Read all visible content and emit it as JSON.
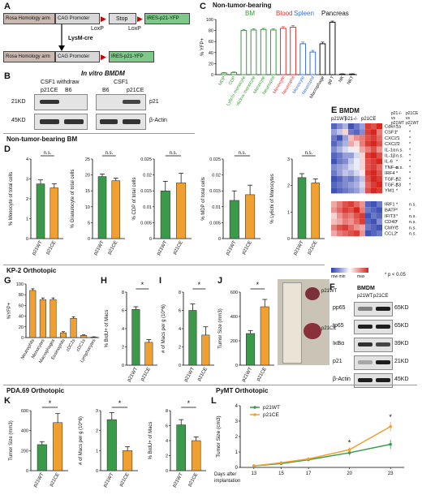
{
  "panels": {
    "A": {
      "label": "A",
      "construct1": {
        "rosa": "Rosa Homology arm",
        "cag": "CAG Promoter",
        "stop": "Stop",
        "ires": "IRES-p21-YFP"
      },
      "loxp_left": "LoxP",
      "loxp_right": "LoxP",
      "cre": "LysM-cre",
      "construct2": {
        "rosa": "Rosa Homology arm",
        "cag": "CAG Promoter",
        "ires": "IRES-p21-YFP"
      }
    },
    "B": {
      "label": "B",
      "title": "In vitro BMDM",
      "cond1": "CSF1 withdraw",
      "cond2": "CSF1",
      "lanes1": [
        "p21CE",
        "B6"
      ],
      "lanes2": [
        "B6",
        "p21CE"
      ],
      "kd_top": "21KD",
      "kd_bottom": "45KD",
      "prot_top": "p21",
      "prot_bottom": "β-Actin"
    },
    "C": {
      "label": "C",
      "title": "Non-tumor-bearing",
      "groups": [
        "BM",
        "Blood",
        "Spleen",
        "Pancreas"
      ],
      "group_colors": [
        "#3a9a3a",
        "#d33",
        "#3a6fd8",
        "#111111"
      ],
      "ylabel": "% YFP+",
      "yticks": [
        "0",
        "20",
        "40",
        "60",
        "80",
        "100"
      ]
    },
    "D": {
      "label": "D",
      "header": "Non-tumor-bearing BM",
      "ns": "n.s.",
      "xlabels": [
        "p21WT",
        "p21CE"
      ]
    },
    "E": {
      "label": "E",
      "title": "BMDM",
      "cols": [
        "p21WT",
        "p21-/-",
        "p21CE"
      ],
      "cmp1": "p21-/- vs p21WT",
      "cmp2": "p21CE vs p21WT",
      "genes_top": [
        "Cdkn1a",
        "CSF1",
        "CXCL1",
        "CXCL2",
        "IL-1α",
        "IL-1β",
        "IL-6",
        "TNF-α",
        "IRF4",
        "TGF-β2",
        "TGF-β3",
        "YM1"
      ],
      "sig_top_1": [
        "*",
        "*",
        "*",
        "*",
        "n.s.",
        "n.s.",
        "*",
        "n.s.",
        "*",
        "*",
        "*",
        "*"
      ],
      "sig_top_2": [
        "*",
        "*",
        "*",
        "*",
        "*",
        "*",
        "*",
        "*",
        "*",
        "*",
        "*",
        "*"
      ],
      "genes_bottom": [
        "IRF1",
        "BATF",
        "IFIT3",
        "CD40",
        "CMYC",
        "CCL2"
      ],
      "sig_bot_1": [
        "*",
        "*",
        "*",
        "*",
        "*",
        "*"
      ],
      "sig_bot_2": [
        "n.s.",
        "*",
        "n.s.",
        "n.s.",
        "n.s.",
        "n.s."
      ],
      "legend_min": "row min",
      "legend_max": "max",
      "pval": "* p < 0.05"
    },
    "F": {
      "label": "F",
      "title": "BMDM",
      "lanes": [
        "p21WT",
        "p21CE"
      ],
      "proteins": [
        "pp65",
        "tp65",
        "IκBα",
        "p21",
        "β-Actin"
      ],
      "kds": [
        "65KD",
        "65KD",
        "39KD",
        "21KD",
        "45KD"
      ]
    },
    "G": {
      "label": "G",
      "header": "KP-2 Orthotopic",
      "ylabel": "%YFP+"
    },
    "H": {
      "label": "H"
    },
    "I": {
      "label": "I"
    },
    "J": {
      "label": "J",
      "photo_wt": "p21WT",
      "photo_ce": "p21CE"
    },
    "K": {
      "label": "K",
      "header": "PDA.69 Orthotopic"
    },
    "L": {
      "label": "L",
      "header": "PyMT Orthotopic"
    }
  },
  "colors": {
    "wt": "#3b9a4a",
    "ce": "#f0a030",
    "heat_low": "#2c3fae",
    "heat_high": "#d7261e"
  },
  "chart_data": [
    {
      "id": "C",
      "type": "bar",
      "title": "Non-tumor-bearing",
      "ylabel": "% YFP+",
      "ylim": [
        0,
        100
      ],
      "categories": [
        "MDP",
        "CDP",
        "Ly6chi monocyte",
        "Ly6clow monocyte",
        "Monocyte",
        "Neutrophil",
        "Monocyte",
        "Neutrophil",
        "Monocyte",
        "Neutrophil",
        "Macrophage",
        "gd T",
        "NK",
        "NKT"
      ],
      "groups": [
        "BM",
        "BM",
        "BM",
        "BM",
        "BM",
        "BM",
        "Blood",
        "Blood",
        "Spleen",
        "Spleen",
        "Pancreas",
        "Pancreas",
        "Pancreas",
        "Pancreas"
      ],
      "values": [
        3,
        4,
        80,
        81,
        82,
        81,
        84,
        86,
        56,
        41,
        56,
        95,
        1,
        1
      ],
      "errors": [
        1,
        1,
        2,
        2,
        2,
        2,
        3,
        3,
        3,
        3,
        3,
        2,
        0.5,
        0.5
      ]
    },
    {
      "id": "D1",
      "type": "bar",
      "ylabel": "% Monocyte of total cells",
      "ylim": [
        0,
        4
      ],
      "yticks": [
        0,
        1,
        2,
        3,
        4
      ],
      "categories": [
        "p21WT",
        "p21CE"
      ],
      "values": [
        2.75,
        2.55
      ],
      "errors": [
        0.2,
        0.2
      ],
      "annotation": "n.s."
    },
    {
      "id": "D2",
      "type": "bar",
      "ylabel": "% Granulocyte of total cells",
      "ylim": [
        0,
        25
      ],
      "yticks": [
        0,
        5,
        10,
        15,
        20,
        25
      ],
      "categories": [
        "p21WT",
        "p21CE"
      ],
      "values": [
        19.5,
        18.2
      ],
      "errors": [
        0.8,
        0.8
      ],
      "annotation": "n.s."
    },
    {
      "id": "D3",
      "type": "bar",
      "ylabel": "% CDP of total cells",
      "ylim": [
        0,
        0.025
      ],
      "yticks": [
        0,
        0.005,
        0.01,
        0.015,
        0.02,
        0.025
      ],
      "categories": [
        "p21WT",
        "p21CE"
      ],
      "values": [
        0.015,
        0.0175
      ],
      "errors": [
        0.003,
        0.003
      ],
      "annotation": "n.s."
    },
    {
      "id": "D4",
      "type": "bar",
      "ylabel": "% MDP of total cells",
      "ylim": [
        0,
        0.025
      ],
      "yticks": [
        0,
        0.005,
        0.01,
        0.015,
        0.02,
        0.025
      ],
      "categories": [
        "p21WT",
        "p21CE"
      ],
      "values": [
        0.012,
        0.0138
      ],
      "errors": [
        0.003,
        0.003
      ],
      "annotation": "n.s."
    },
    {
      "id": "D5",
      "type": "bar",
      "ylabel": "% Ly6chi of Monocytes",
      "ylim": [
        0,
        3
      ],
      "yticks": [
        0,
        1,
        2,
        3
      ],
      "categories": [
        "p21WT",
        "p21CE"
      ],
      "values": [
        2.3,
        2.1
      ],
      "errors": [
        0.15,
        0.15
      ],
      "annotation": "n.s."
    },
    {
      "id": "G",
      "type": "bar",
      "ylabel": "%YFP+",
      "ylim": [
        0,
        100
      ],
      "yticks": [
        0,
        20,
        40,
        60,
        80,
        100
      ],
      "categories": [
        "Neutrophils",
        "Monocytes",
        "Macrophages",
        "Eosinophils",
        "cDC2s",
        "cDC1s",
        "Lymphocytes"
      ],
      "values": [
        88,
        71,
        71,
        9,
        36,
        4,
        1
      ],
      "errors": [
        3,
        3,
        3,
        2,
        3,
        1,
        0.5
      ]
    },
    {
      "id": "H",
      "type": "bar",
      "ylabel": "% BrdU+ of Macs",
      "ylim": [
        0,
        8
      ],
      "yticks": [
        0,
        2,
        4,
        6,
        8
      ],
      "categories": [
        "p21WT",
        "p21CE"
      ],
      "values": [
        6.1,
        2.5
      ],
      "errors": [
        0.3,
        0.3
      ],
      "annotation": "*"
    },
    {
      "id": "I",
      "type": "bar",
      "ylabel": "# of Macs per g (10^6)",
      "ylim": [
        0,
        8
      ],
      "yticks": [
        0,
        2,
        4,
        6,
        8
      ],
      "categories": [
        "p21WT",
        "p21CE"
      ],
      "values": [
        6.0,
        3.3
      ],
      "errors": [
        0.7,
        0.9
      ],
      "annotation": "*"
    },
    {
      "id": "J",
      "type": "bar",
      "ylabel": "Tumor Size (mm3)",
      "ylim": [
        0,
        600
      ],
      "yticks": [
        0,
        200,
        400,
        600
      ],
      "categories": [
        "p21WT",
        "p21CE"
      ],
      "values": [
        260,
        480
      ],
      "errors": [
        25,
        60
      ],
      "annotation": "*"
    },
    {
      "id": "K1",
      "type": "bar",
      "ylabel": "Tumor Size (mm3)",
      "ylim": [
        0,
        600
      ],
      "yticks": [
        0,
        200,
        400,
        600
      ],
      "categories": [
        "p21WT",
        "p21CE"
      ],
      "values": [
        260,
        480
      ],
      "errors": [
        30,
        90
      ],
      "annotation": "*"
    },
    {
      "id": "K2",
      "type": "bar",
      "ylabel": "# of Macs per g (10^6)",
      "ylim": [
        0,
        3
      ],
      "yticks": [
        0,
        1,
        2,
        3
      ],
      "categories": [
        "p21WT",
        "p21CE"
      ],
      "values": [
        2.55,
        1.0
      ],
      "errors": [
        0.35,
        0.2
      ],
      "annotation": "*"
    },
    {
      "id": "K3",
      "type": "bar",
      "ylabel": "% BrdU+ of Macs",
      "ylim": [
        0,
        8
      ],
      "yticks": [
        0,
        2,
        4,
        6,
        8
      ],
      "categories": [
        "p21WT",
        "p21CE"
      ],
      "values": [
        6.1,
        4.0
      ],
      "errors": [
        0.7,
        0.5
      ],
      "annotation": "*"
    },
    {
      "id": "L",
      "type": "line",
      "ylabel": "Tumor Size (cm3)",
      "xlabel": "Days after implantation",
      "ylim": [
        0,
        4
      ],
      "yticks": [
        0,
        1,
        2,
        3,
        4
      ],
      "x": [
        13,
        15,
        17,
        20,
        23
      ],
      "series": [
        {
          "name": "p21WT",
          "values": [
            0.1,
            0.25,
            0.5,
            0.95,
            1.5
          ],
          "errors": [
            0.05,
            0.08,
            0.1,
            0.15,
            0.3
          ]
        },
        {
          "name": "p21CE",
          "values": [
            0.1,
            0.3,
            0.55,
            1.15,
            2.65
          ],
          "errors": [
            0.05,
            0.08,
            0.1,
            0.15,
            0.3
          ]
        }
      ],
      "annotations": [
        {
          "x": 20,
          "text": "*"
        },
        {
          "x": 23,
          "text": "*"
        }
      ]
    }
  ]
}
